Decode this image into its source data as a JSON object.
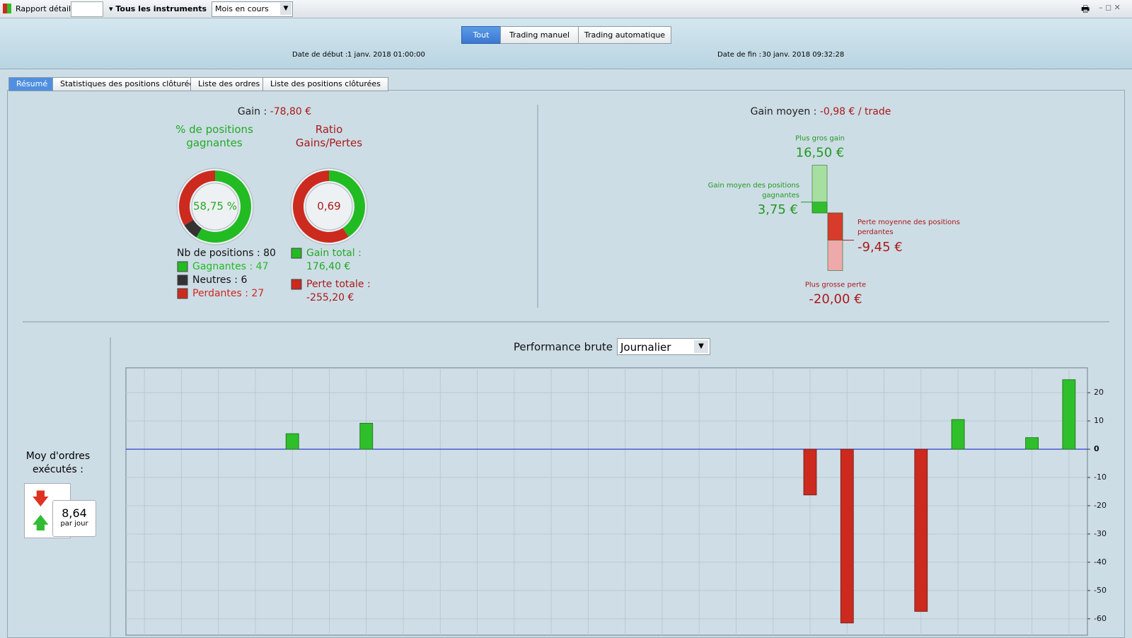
{
  "toolbar": {
    "report": "Rapport détaillé",
    "instruments": "Tous les instruments",
    "period": "Mois en cours"
  },
  "filters": [
    "Tout",
    "Trading manuel",
    "Trading automatique"
  ],
  "dates": {
    "start_label": "Date de début :",
    "start": "1 janv. 2018 01:00:00",
    "end_label": "Date de fin :",
    "end": "30 janv. 2018 09:32:28"
  },
  "tabs": [
    "Résumé",
    "Statistiques des positions clôturées",
    "Liste des ordres",
    "Liste des positions clôturées"
  ],
  "summary": {
    "gain_label": "Gain :",
    "gain": "-78,80 €",
    "positions_label": "Nb de positions :",
    "positions": 80,
    "avg_gain_label": "Gain moyen :",
    "avg_gain": "-0,98 € / trade",
    "orders_label": "Moy d'ordres exécutés :",
    "orders_per_day": "8,64",
    "orders_unit": "par jour"
  },
  "chart_data": [
    {
      "type": "donut",
      "title": "% de positions gagnantes",
      "center_label": "58,75 %",
      "categories": [
        "Gagnantes :",
        "Neutres :",
        "Perdantes :"
      ],
      "values": [
        47,
        6,
        27
      ],
      "colors": [
        "#22bb22",
        "#333333",
        "#cc2a1e"
      ]
    },
    {
      "type": "donut",
      "title": "Ratio Gains/Pertes",
      "center_label": "0,69",
      "categories": [
        "Gain total :",
        "Perte totale :"
      ],
      "values": [
        176.4,
        -255.2
      ],
      "value_labels": [
        "176,40 €",
        "-255,20 €"
      ],
      "colors": [
        "#22bb22",
        "#cc2a1e"
      ]
    },
    {
      "type": "range",
      "categories": [
        "Plus gros gain",
        "Gain moyen des positions gagnantes",
        "Perte moyenne des positions perdantes",
        "Plus grosse perte"
      ],
      "values": [
        16.5,
        3.75,
        -9.45,
        -20
      ],
      "value_labels": [
        "16,50 €",
        "3,75 €",
        "-9,45 €",
        "-20,00 €"
      ],
      "colors": [
        "#a6dfa0",
        "#2fbf2a",
        "#d83a2c",
        "#eeaaaa"
      ]
    },
    {
      "type": "bar",
      "title": "Performance brute",
      "period": "Journalier",
      "categories": [
        null,
        null,
        null,
        null,
        null,
        null,
        null,
        null,
        null,
        null,
        null,
        null,
        null,
        null,
        null,
        null,
        null,
        null,
        null,
        null,
        null,
        null,
        null,
        null,
        null,
        null
      ],
      "values": [
        null,
        null,
        null,
        null,
        5.5,
        null,
        9.2,
        null,
        null,
        null,
        null,
        null,
        null,
        null,
        null,
        null,
        null,
        null,
        -16.2,
        -61.5,
        null,
        -57.4,
        10.5,
        null,
        4.1,
        24.6
      ],
      "positive_color": "#2fbf2a",
      "negative_color": "#cc2a1e",
      "zero_line_color": "#2233cc",
      "ylim": [
        -65.8,
        28.8
      ],
      "yticks": [
        20,
        10,
        0,
        -10,
        -20,
        -30,
        -40,
        -50,
        -60
      ],
      "grid": true
    }
  ]
}
